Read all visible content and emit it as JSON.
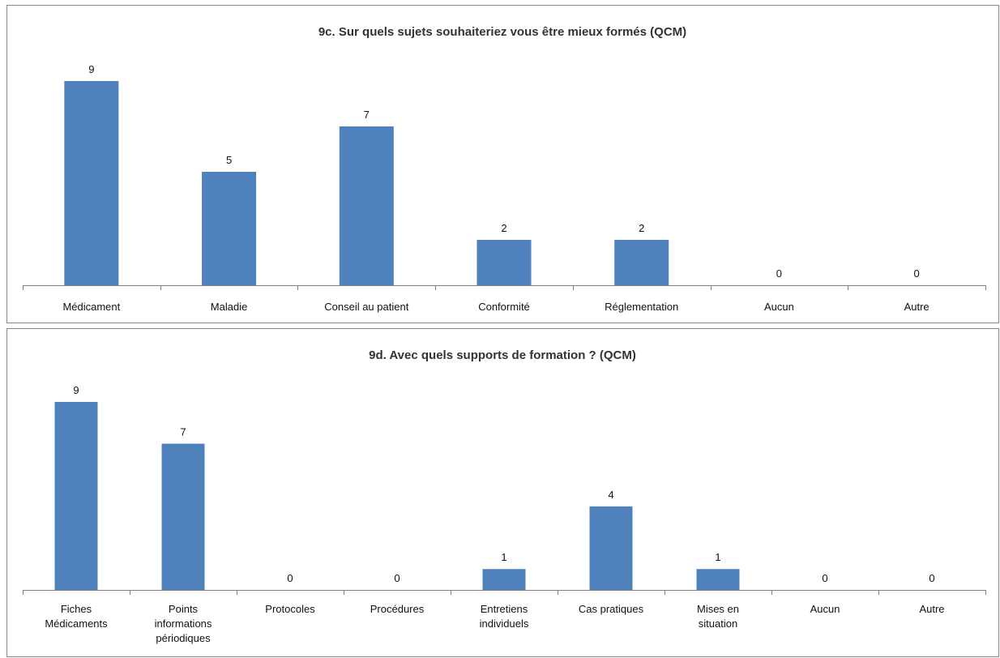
{
  "chart_data": [
    {
      "type": "bar",
      "title": "9c. Sur quels sujets souhaiteriez vous être mieux formés (QCM)",
      "categories": [
        "Médicament",
        "Maladie",
        "Conseil au patient",
        "Conformité",
        "Réglementation",
        "Aucun",
        "Autre"
      ],
      "values": [
        9,
        5,
        7,
        2,
        2,
        0,
        0
      ],
      "xlabel": "",
      "ylabel": "",
      "ylim": [
        0,
        9
      ],
      "grid": false,
      "data_labels": true,
      "bar_color": "#4f81bd"
    },
    {
      "type": "bar",
      "title": "9d. Avec quels supports de formation ? (QCM)",
      "categories": [
        "Fiches Médicaments",
        "Points informations périodiques",
        "Protocoles",
        "Procédures",
        "Entretiens individuels",
        "Cas pratiques",
        "Mises en situation",
        "Aucun",
        "Autre"
      ],
      "category_lines": [
        [
          "Fiches",
          "Médicaments"
        ],
        [
          "Points",
          "informations",
          "périodiques"
        ],
        [
          "Protocoles"
        ],
        [
          "Procédures"
        ],
        [
          "Entretiens",
          "individuels"
        ],
        [
          "Cas pratiques"
        ],
        [
          "Mises en",
          "situation"
        ],
        [
          "Aucun"
        ],
        [
          "Autre"
        ]
      ],
      "values": [
        9,
        7,
        0,
        0,
        1,
        4,
        1,
        0,
        0
      ],
      "xlabel": "",
      "ylabel": "",
      "ylim": [
        0,
        9
      ],
      "grid": false,
      "data_labels": true,
      "bar_color": "#4f81bd"
    }
  ]
}
